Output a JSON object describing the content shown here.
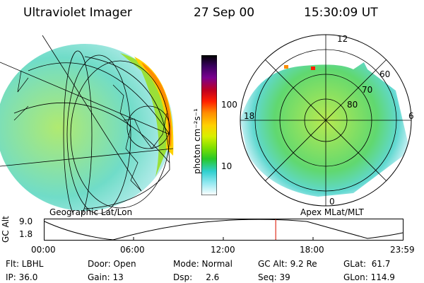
{
  "header": {
    "instrument": "Ultraviolet Imager",
    "date": "27 Sep 00",
    "time": "15:30:09 UT"
  },
  "colorbar": {
    "unit_label": "photon cm⁻²s⁻¹",
    "ticks": [
      "100",
      "10"
    ],
    "colors": [
      "#000000",
      "#3a0060",
      "#7a0090",
      "#c00020",
      "#ff2000",
      "#ff8c00",
      "#ffd000",
      "#d8f000",
      "#80e000",
      "#28c828",
      "#30d0d0",
      "#90e8f0",
      "#ffffff"
    ]
  },
  "geo_panel": {
    "caption": "Geographic Lat/Lon"
  },
  "polar_panel": {
    "caption": "Apex MLat/MLT",
    "mlt_labels": [
      "12",
      "18",
      "6",
      "0"
    ],
    "lat_labels": [
      "60",
      "70",
      "80"
    ]
  },
  "altitude_plot": {
    "ylabel": "GC Alt",
    "yticks": [
      "9.0",
      "1.8"
    ],
    "xticks": [
      "00:00",
      "06:00",
      "12:00",
      "18:00",
      "23:59"
    ],
    "current_time_fraction": 0.646
  },
  "footer": {
    "flt": "Flt: LBHL",
    "ip": "IP: 36.0",
    "door": "Door: Open",
    "gain": "Gain: 13",
    "mode": "Mode: Normal",
    "dsp": "Dsp:     2.6",
    "gcalt": "GC Alt: 9.2 Re",
    "seq": "Seq: 39",
    "glat": "GLat:  61.7",
    "glon": "GLon: 114.9"
  }
}
